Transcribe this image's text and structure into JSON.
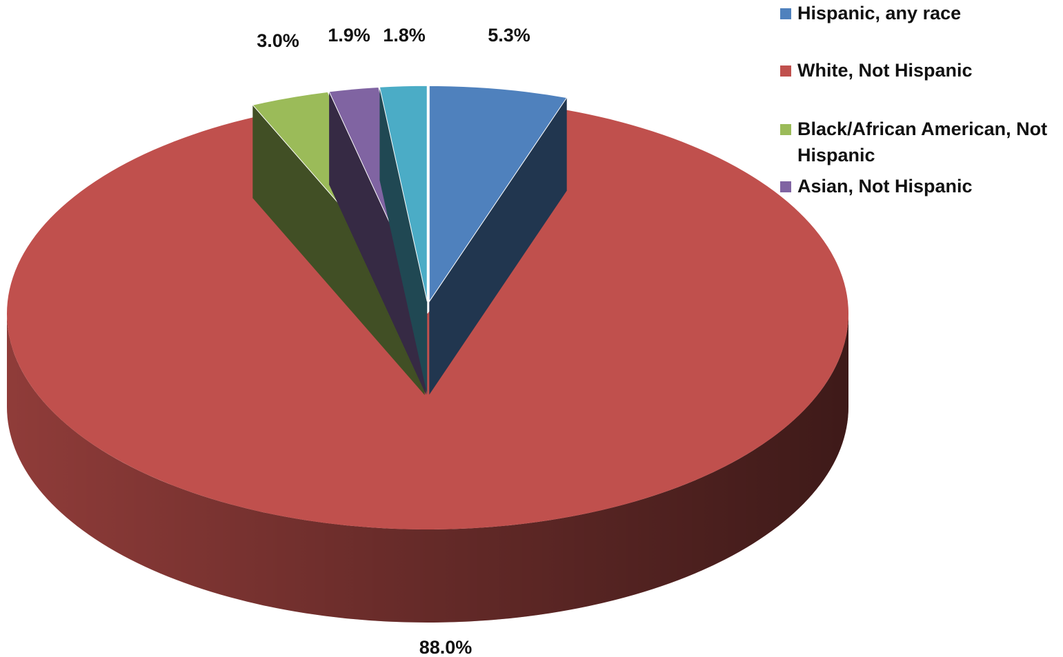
{
  "chart_data": {
    "type": "pie",
    "title": "",
    "categories": [
      "Hispanic, any race",
      "White, Not Hispanic",
      "Black/African American, Not Hispanic",
      "Asian, Not Hispanic",
      ""
    ],
    "values": [
      5.3,
      88.0,
      3.0,
      1.9,
      1.8
    ],
    "data_labels": [
      "5.3%",
      "88.0%",
      "3.0%",
      "1.9%",
      "1.8%"
    ],
    "colors": [
      "#4F81BD",
      "#C0504D",
      "#9BBB59",
      "#8064A2",
      "#4BACC6"
    ],
    "legend_position": "top-right",
    "style": "3d-exploded"
  }
}
